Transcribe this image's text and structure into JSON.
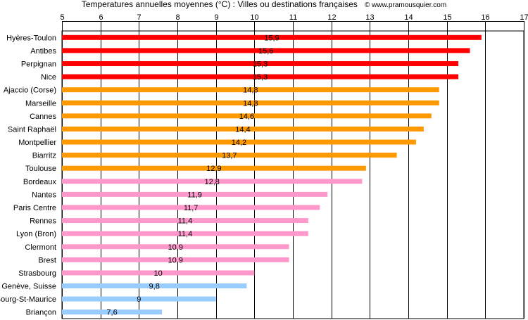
{
  "header": {
    "title": "Temperatures annuelles moyennes (°C) : Villes ou destinations françaises",
    "credit": "© www.pramousquier.com"
  },
  "chart_data": {
    "type": "bar",
    "orientation": "horizontal",
    "categories": [
      "Hyères-Toulon",
      "Antibes",
      "Perpignan",
      "Nice",
      "Ajaccio (Corse)",
      "Marseille",
      "Cannes",
      "Saint Raphaël",
      "Montpellier",
      "Biarritz",
      "Toulouse",
      "Bordeaux",
      "Nantes",
      "Paris Centre",
      "Rennes",
      "Lyon (Bron)",
      "Clermont",
      "Brest",
      "Strasbourg",
      "Genève, Suisse",
      "Bourg-St-Maurice",
      "Briançon"
    ],
    "values": [
      15.9,
      15.6,
      15.3,
      15.3,
      14.8,
      14.8,
      14.6,
      14.4,
      14.2,
      13.7,
      12.9,
      12.8,
      11.9,
      11.7,
      11.4,
      11.4,
      10.9,
      10.9,
      10,
      9.8,
      9,
      7.6
    ],
    "value_labels": [
      "15,9",
      "15,6",
      "15,3",
      "15,3",
      "14,8",
      "14,8",
      "14,6",
      "14,4",
      "14,2",
      "13,7",
      "12,9",
      "12,8",
      "11,9",
      "11,7",
      "11,4",
      "11,4",
      "10,9",
      "10,9",
      "10",
      "9,8",
      "9",
      "7,6"
    ],
    "bar_colors": [
      "#ff0000",
      "#ff0000",
      "#ff0000",
      "#ff0000",
      "#ff9900",
      "#ff9900",
      "#ff9900",
      "#ff9900",
      "#ff9900",
      "#ff9900",
      "#ff9900",
      "#ff99cc",
      "#ff99cc",
      "#ff99cc",
      "#ff99cc",
      "#ff99cc",
      "#ff99cc",
      "#ff99cc",
      "#ff99cc",
      "#99ccff",
      "#99ccff",
      "#99ccff"
    ],
    "x_ticks": [
      5,
      6,
      7,
      8,
      9,
      10,
      11,
      12,
      13,
      14,
      15,
      16,
      17
    ],
    "xlim": [
      5,
      17
    ],
    "x_axis_position": "top",
    "grid": "vertical"
  }
}
